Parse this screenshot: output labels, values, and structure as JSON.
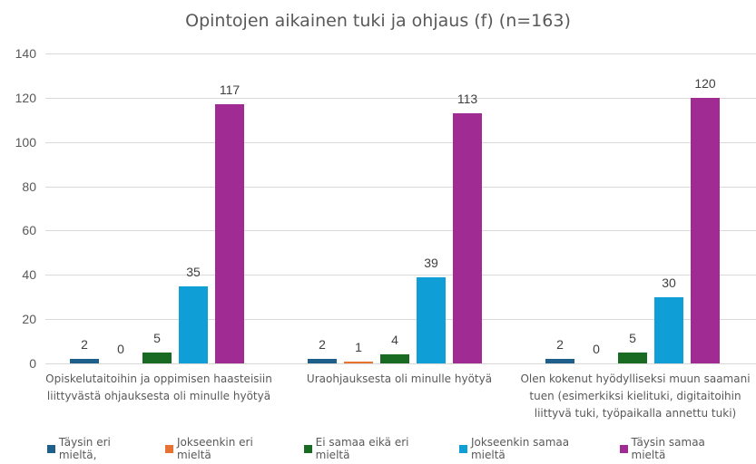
{
  "chart_data": {
    "type": "bar",
    "title": "Opintojen aikainen tuki ja ohjaus (f) (n=163)",
    "xlabel": "",
    "ylabel": "",
    "ylim": [
      0,
      140
    ],
    "yticks": [
      "0",
      "20",
      "40",
      "60",
      "80",
      "100",
      "120",
      "140"
    ],
    "grid": true,
    "legend_position": "bottom",
    "categories": [
      "Opiskelutaitoihin ja oppimisen haasteisiin liittyvästä ohjauksesta oli minulle hyötyä",
      "Uraohjauksesta oli minulle hyötyä",
      "Olen kokenut hyödylliseksi muun saamani tuen (esimerkiksi kielituki, digitaitoihin liittyvä tuki, työpaikalla annettu tuki)"
    ],
    "category_lines": [
      [
        "Opiskelutaitoihin ja oppimisen haasteisiin",
        "liittyvästä ohjauksesta oli minulle hyötyä"
      ],
      [
        "Uraohjauksesta oli minulle hyötyä"
      ],
      [
        "Olen kokenut hyödylliseksi muun saamani",
        "tuen (esimerkiksi kielituki, digitaitoihin",
        "liittyvä tuki, työpaikalla annettu tuki)"
      ]
    ],
    "series": [
      {
        "name": "Täysin eri mieltä,",
        "color": "#1F5F8B",
        "values": [
          2,
          2,
          2
        ]
      },
      {
        "name": "Jokseenkin eri mieltä",
        "color": "#E97132",
        "values": [
          0,
          1,
          0
        ]
      },
      {
        "name": "Ei samaa eikä eri mieltä",
        "color": "#196B24",
        "values": [
          5,
          4,
          5
        ]
      },
      {
        "name": "Jokseenkin samaa mieltä",
        "color": "#0F9ED5",
        "values": [
          35,
          39,
          30
        ]
      },
      {
        "name": "Täysin samaa mieltä",
        "color": "#A02B93",
        "values": [
          117,
          113,
          120
        ]
      }
    ]
  }
}
